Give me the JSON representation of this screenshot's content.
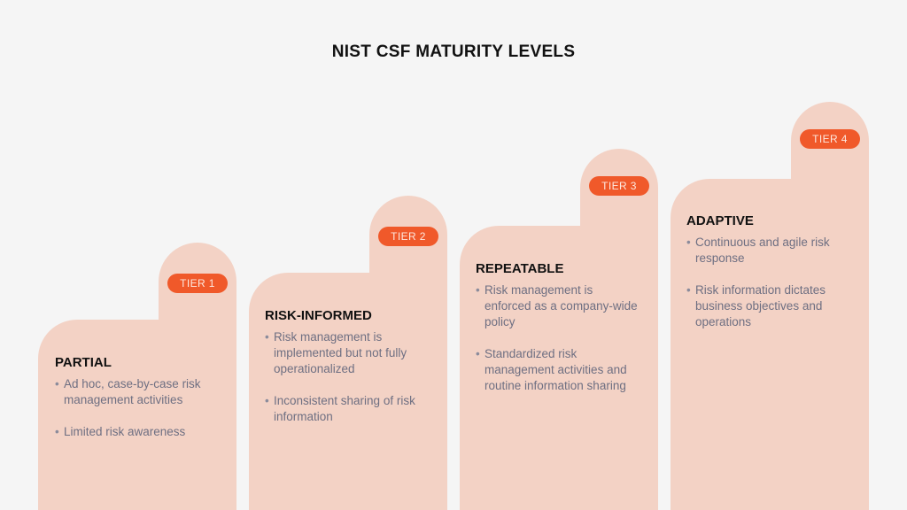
{
  "title": "NIST CSF MATURITY LEVELS",
  "colors": {
    "background": "#f5f5f5",
    "card": "#f3d2c5",
    "badge": "#f0592a",
    "badge_text": "#fde8df",
    "heading": "#111111",
    "body_text": "#6e6f82"
  },
  "tiers": [
    {
      "badge": "TIER 1",
      "heading": "PARTIAL",
      "bullets": [
        "Ad hoc, case-by-case risk management activities",
        "Limited risk awareness"
      ]
    },
    {
      "badge": "TIER 2",
      "heading": "RISK-INFORMED",
      "bullets": [
        "Risk management is implemented but not fully operationalized",
        "Inconsistent sharing of risk information"
      ]
    },
    {
      "badge": "TIER 3",
      "heading": "REPEATABLE",
      "bullets": [
        "Risk management is enforced as a company-wide policy",
        "Standardized risk management activities and routine information sharing"
      ]
    },
    {
      "badge": "TIER 4",
      "heading": "ADAPTIVE",
      "bullets": [
        "Continuous and agile risk response",
        "Risk information dictates business objectives and operations"
      ]
    }
  ]
}
